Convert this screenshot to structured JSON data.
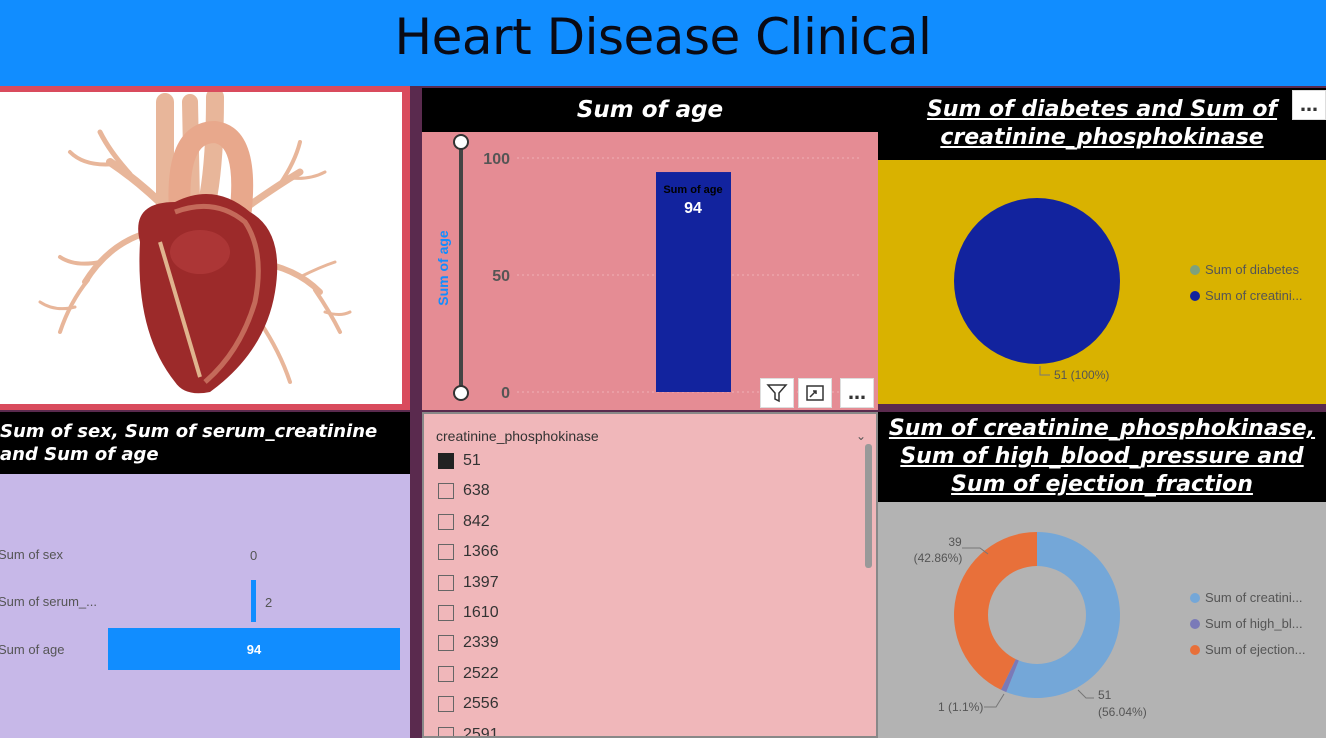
{
  "header": {
    "title": "Heart Disease Clinical"
  },
  "image_panel": {
    "alt": "Heart illustration"
  },
  "age_chart": {
    "title": "Sum of age",
    "ylabel": "Sum of age",
    "ticks": [
      "100",
      "50",
      "0"
    ],
    "tooltip_label": "Sum of age",
    "tooltip_value": "94",
    "more_label": "…"
  },
  "diabetes_chart": {
    "title": "Sum of diabetes and Sum of creatinine_phosphokinase",
    "legend": [
      "Sum of diabetes",
      "Sum of creatini..."
    ],
    "slice_label": "51 (100%)",
    "more_label": "…"
  },
  "sex_chart": {
    "title": "Sum of sex, Sum of serum_creatinine and Sum of age",
    "rows": [
      {
        "label": "Sum of sex",
        "value_label": "0"
      },
      {
        "label": "Sum of serum_...",
        "value_label": "2"
      },
      {
        "label": "Sum of age",
        "value_label": "94"
      }
    ]
  },
  "slicer": {
    "header": "creatinine_phosphokinase",
    "items": [
      {
        "label": "51",
        "checked": true
      },
      {
        "label": "638",
        "checked": false
      },
      {
        "label": "842",
        "checked": false
      },
      {
        "label": "1366",
        "checked": false
      },
      {
        "label": "1397",
        "checked": false
      },
      {
        "label": "1610",
        "checked": false
      },
      {
        "label": "2339",
        "checked": false
      },
      {
        "label": "2522",
        "checked": false
      },
      {
        "label": "2556",
        "checked": false
      },
      {
        "label": "2591",
        "checked": false
      }
    ]
  },
  "donut_chart": {
    "title": "Sum of creatinine_phosphokinase, Sum of high_blood_pressure and Sum of ejection_fraction",
    "legend": [
      "Sum of creatini...",
      "Sum of high_bl...",
      "Sum of ejection..."
    ],
    "label_a_1": "39",
    "label_a_2": "(42.86%)",
    "label_b": "1 (1.1%)",
    "label_c_1": "51",
    "label_c_2": "(56.04%)"
  },
  "colors": {
    "header": "#118dff",
    "bar": "#12239e",
    "light_blue": "#118dff",
    "donut_blue": "#74a7d8",
    "donut_purple": "#7a7ab8",
    "donut_orange": "#e8703a"
  },
  "chart_data": [
    {
      "type": "bar",
      "title": "Sum of age",
      "categories": [
        ""
      ],
      "values": [
        94
      ],
      "ylabel": "Sum of age",
      "ylim": [
        0,
        100
      ]
    },
    {
      "type": "pie",
      "title": "Sum of diabetes and Sum of creatinine_phosphokinase",
      "categories": [
        "Sum of diabetes",
        "Sum of creatinine_phosphokinase"
      ],
      "values": [
        0,
        51
      ]
    },
    {
      "type": "bar",
      "orientation": "horizontal",
      "title": "Sum of sex, Sum of serum_creatinine and Sum of age",
      "categories": [
        "Sum of sex",
        "Sum of serum_creatinine",
        "Sum of age"
      ],
      "values": [
        0,
        2,
        94
      ]
    },
    {
      "type": "pie",
      "subtype": "donut",
      "title": "Sum of creatinine_phosphokinase, Sum of high_blood_pressure and Sum of ejection_fraction",
      "categories": [
        "Sum of creatinine_phosphokinase",
        "Sum of high_blood_pressure",
        "Sum of ejection_fraction"
      ],
      "values": [
        51,
        1,
        39
      ]
    }
  ]
}
